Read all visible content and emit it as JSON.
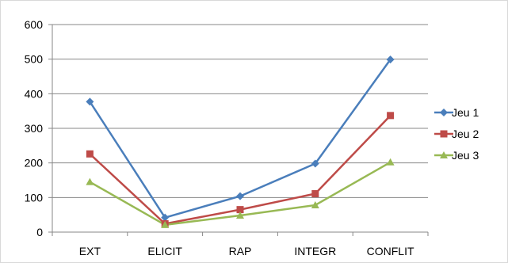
{
  "chart_data": {
    "type": "line",
    "categories": [
      "EXT",
      "ELICIT",
      "RAP",
      "INTEGR",
      "CONFLIT"
    ],
    "series": [
      {
        "name": "Jeu 1",
        "values": [
          377,
          42,
          104,
          198,
          499
        ],
        "color": "#4a7ebb",
        "marker": "diamond"
      },
      {
        "name": "Jeu 2",
        "values": [
          226,
          24,
          65,
          111,
          337
        ],
        "color": "#be4b48",
        "marker": "square"
      },
      {
        "name": "Jeu 3",
        "values": [
          145,
          21,
          48,
          78,
          202
        ],
        "color": "#98b954",
        "marker": "triangle"
      }
    ],
    "yticks": [
      0,
      100,
      200,
      300,
      400,
      500,
      600
    ],
    "ylim": [
      0,
      600
    ],
    "grid": true,
    "legend_position": "right"
  }
}
